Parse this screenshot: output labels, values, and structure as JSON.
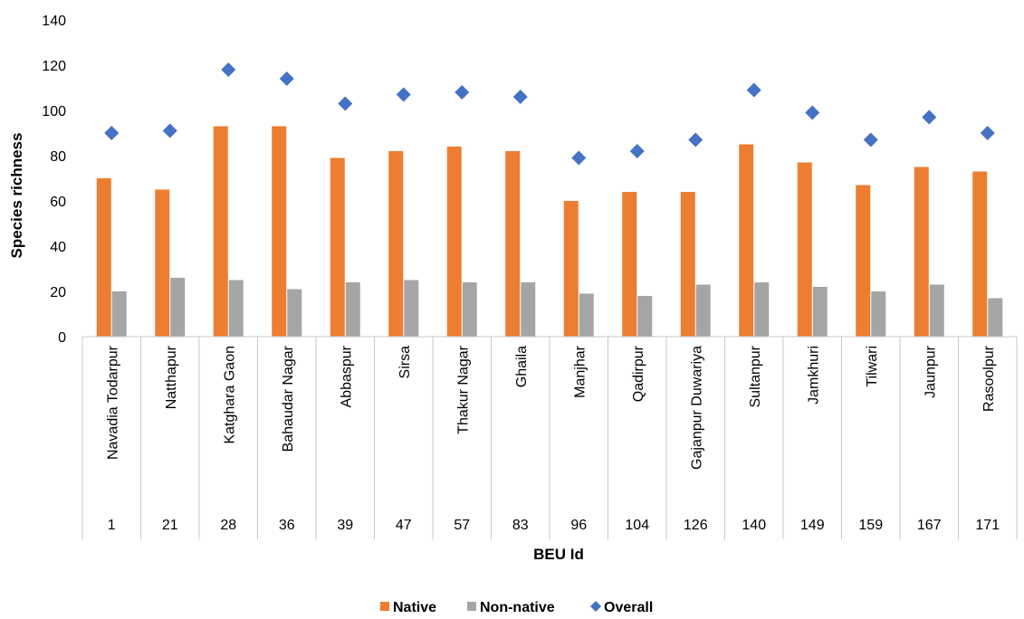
{
  "chart_data": {
    "type": "bar",
    "xlabel": "BEU Id",
    "ylabel": "Species richness",
    "ylim": [
      0,
      140
    ],
    "yticks": [
      0,
      20,
      40,
      60,
      80,
      100,
      120,
      140
    ],
    "grid": false,
    "legend_position": "bottom",
    "categories": [
      {
        "name": "Navadia Todarpur",
        "id": "1"
      },
      {
        "name": "Natthapur",
        "id": "21"
      },
      {
        "name": "Katghara Gaon",
        "id": "28"
      },
      {
        "name": "Bahaudar Nagar",
        "id": "36"
      },
      {
        "name": "Abbaspur",
        "id": "39"
      },
      {
        "name": "Sirsa",
        "id": "47"
      },
      {
        "name": "Thakur Nagar",
        "id": "57"
      },
      {
        "name": "Ghaila",
        "id": "83"
      },
      {
        "name": "Manjhar",
        "id": "96"
      },
      {
        "name": "Qadirpur",
        "id": "104"
      },
      {
        "name": "Gajanpur Duwariya",
        "id": "126"
      },
      {
        "name": "Sultanpur",
        "id": "140"
      },
      {
        "name": "Jamkhuri",
        "id": "149"
      },
      {
        "name": "Tilwari",
        "id": "159"
      },
      {
        "name": "Jaunpur",
        "id": "167"
      },
      {
        "name": "Rasoolpur",
        "id": "171"
      }
    ],
    "series": [
      {
        "name": "Native",
        "type": "bar",
        "color": "#ED7D31",
        "values": [
          70,
          65,
          93,
          93,
          79,
          82,
          84,
          82,
          60,
          64,
          64,
          85,
          77,
          67,
          75,
          73
        ]
      },
      {
        "name": "Non-native",
        "type": "bar",
        "color": "#A5A5A5",
        "values": [
          20,
          26,
          25,
          21,
          24,
          25,
          24,
          24,
          19,
          18,
          23,
          24,
          22,
          20,
          23,
          17
        ]
      },
      {
        "name": "Overall",
        "type": "scatter",
        "marker": "diamond",
        "color": "#4472C4",
        "values": [
          90,
          91,
          118,
          114,
          103,
          107,
          108,
          106,
          79,
          82,
          87,
          109,
          99,
          87,
          97,
          90
        ]
      }
    ]
  }
}
